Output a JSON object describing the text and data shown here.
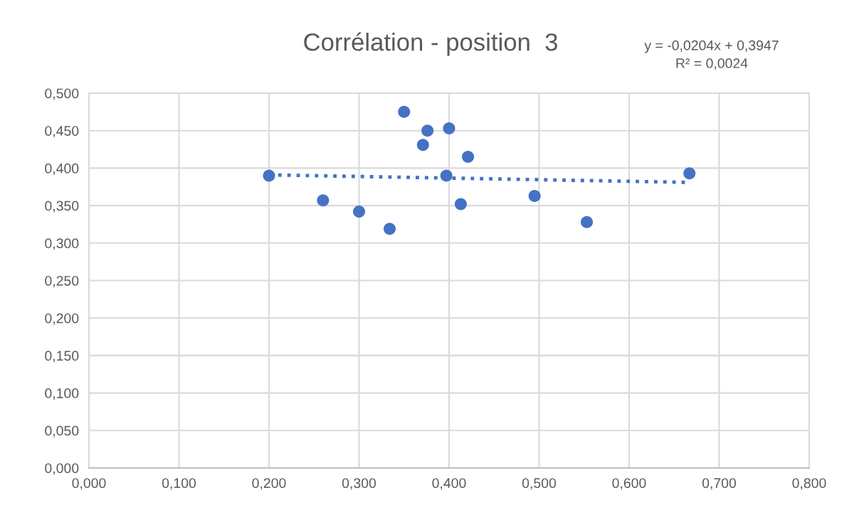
{
  "chart_data": {
    "type": "scatter",
    "title": "Corrélation - position  3",
    "annotations": [
      "y = -0,0204x + 0,3947\nR² = 0,0024"
    ],
    "series": [
      {
        "color": "#4472c4",
        "marker": "circle",
        "x": [
          0.2,
          0.26,
          0.3,
          0.334,
          0.35,
          0.376,
          0.371,
          0.4,
          0.397,
          0.421,
          0.413,
          0.495,
          0.553,
          0.667
        ],
        "values": [
          0.39,
          0.357,
          0.342,
          0.319,
          0.475,
          0.45,
          0.431,
          0.453,
          0.39,
          0.415,
          0.352,
          0.363,
          0.328,
          0.393
        ]
      },
      {
        "type": "line",
        "color": "#4472c4",
        "line_style": "dotted",
        "x": [
          0.2,
          0.667
        ],
        "values": [
          0.391,
          0.381
        ]
      }
    ],
    "xlim": [
      0,
      0.8
    ],
    "xticks": [
      {
        "value": 0,
        "label": "0,000"
      },
      {
        "value": 0.1,
        "label": "0,100"
      },
      {
        "value": 0.2,
        "label": "0,200"
      },
      {
        "value": 0.3,
        "label": "0,300"
      },
      {
        "value": 0.4,
        "label": "0,400"
      },
      {
        "value": 0.5,
        "label": "0,500"
      },
      {
        "value": 0.6,
        "label": "0,600"
      },
      {
        "value": 0.7,
        "label": "0,700"
      },
      {
        "value": 0.8,
        "label": "0,800"
      }
    ],
    "ylim": [
      0,
      0.5
    ],
    "yticks": [
      {
        "value": 0,
        "label": "0,000"
      },
      {
        "value": 0.05,
        "label": "0,050"
      },
      {
        "value": 0.1,
        "label": "0,100"
      },
      {
        "value": 0.15,
        "label": "0,150"
      },
      {
        "value": 0.2,
        "label": "0,200"
      },
      {
        "value": 0.25,
        "label": "0,250"
      },
      {
        "value": 0.3,
        "label": "0,300"
      },
      {
        "value": 0.35,
        "label": "0,350"
      },
      {
        "value": 0.4,
        "label": "0,400"
      },
      {
        "value": 0.45,
        "label": "0,450"
      },
      {
        "value": 0.5,
        "label": "0,500"
      }
    ],
    "grid": true
  }
}
